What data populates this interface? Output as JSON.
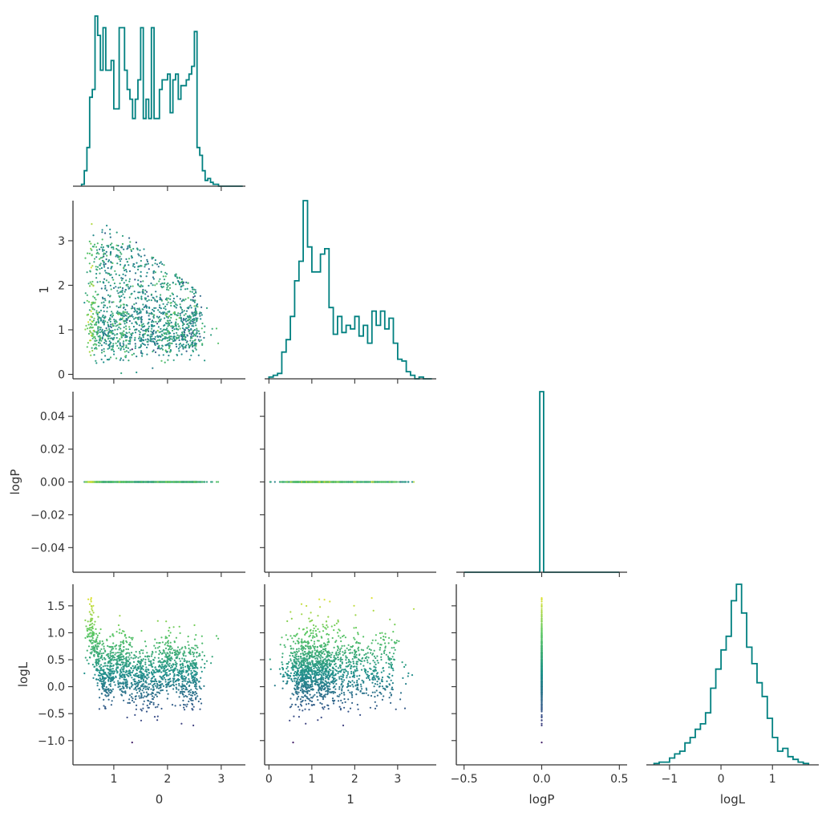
{
  "chart_data": {
    "type": "corner",
    "variables": [
      "0",
      "1",
      "logP",
      "logL"
    ],
    "axis_labels": {
      "x": [
        "0",
        "1",
        "logP",
        "logL"
      ],
      "y": [
        "",
        "1",
        "logP",
        "logL"
      ]
    },
    "ticks": {
      "0": {
        "values": [
          1,
          2,
          3
        ],
        "labels": [
          "1",
          "2",
          "3"
        ]
      },
      "1": {
        "values": [
          0,
          1,
          2,
          3
        ],
        "labels": [
          "0",
          "1",
          "2",
          "3"
        ]
      },
      "logP_x": {
        "values": [
          -0.5,
          0.0,
          0.5
        ],
        "labels": [
          "−0.5",
          "0.0",
          "0.5"
        ]
      },
      "logP_y": {
        "values": [
          -0.04,
          -0.02,
          0.0,
          0.02,
          0.04
        ],
        "labels": [
          "−0.04",
          "−0.02",
          "0.00",
          "0.02",
          "0.04"
        ]
      },
      "logL_x": {
        "values": [
          -1,
          0,
          1
        ],
        "labels": [
          "−1",
          "0",
          "1"
        ]
      },
      "logL_y": {
        "values": [
          -1.0,
          -0.5,
          0.0,
          0.5,
          1.0,
          1.5
        ],
        "labels": [
          "−1.0",
          "−0.5",
          "0.0",
          "0.5",
          "1.0",
          "1.5"
        ]
      }
    },
    "ranges": {
      "0": [
        0.24,
        3.45
      ],
      "1": [
        -0.1,
        3.9
      ],
      "logP_x": [
        -0.55,
        0.55
      ],
      "logP_y": [
        -0.055,
        0.055
      ],
      "logL": [
        -1.45,
        1.9
      ]
    },
    "hist_color": "#008080",
    "colormap": "viridis",
    "colormap_stops": [
      "#440154",
      "#3b528b",
      "#21918c",
      "#5ec962",
      "#fde725"
    ],
    "histograms": {
      "0": {
        "edges": [
          0.4,
          0.45,
          0.5,
          0.55,
          0.6,
          0.65,
          0.7,
          0.75,
          0.8,
          0.85,
          0.9,
          0.95,
          1.0,
          1.05,
          1.1,
          1.15,
          1.2,
          1.25,
          1.3,
          1.35,
          1.4,
          1.45,
          1.5,
          1.55,
          1.6,
          1.65,
          1.7,
          1.75,
          1.8,
          1.85,
          1.9,
          1.95,
          2.0,
          2.05,
          2.1,
          2.15,
          2.2,
          2.25,
          2.3,
          2.35,
          2.4,
          2.45,
          2.5,
          2.55,
          2.6,
          2.65,
          2.7,
          2.75,
          2.8,
          2.85,
          2.9,
          2.95,
          3.0,
          3.05,
          3.1,
          3.15,
          3.2,
          3.25,
          3.3,
          3.35,
          3.4
        ],
        "counts": [
          1,
          8,
          20,
          46,
          50,
          88,
          78,
          60,
          82,
          60,
          60,
          65,
          40,
          40,
          82,
          82,
          60,
          50,
          45,
          35,
          45,
          55,
          82,
          35,
          45,
          35,
          82,
          35,
          35,
          50,
          55,
          55,
          58,
          38,
          55,
          58,
          45,
          52,
          52,
          55,
          58,
          62,
          80,
          20,
          16,
          8,
          3,
          4,
          2,
          1,
          1,
          0,
          0,
          0,
          0,
          0,
          0,
          0,
          0,
          0
        ]
      },
      "1": {
        "edges": [
          0.0,
          0.1,
          0.2,
          0.3,
          0.4,
          0.5,
          0.6,
          0.7,
          0.8,
          0.9,
          1.0,
          1.1,
          1.2,
          1.3,
          1.4,
          1.5,
          1.6,
          1.7,
          1.8,
          1.9,
          2.0,
          2.1,
          2.2,
          2.3,
          2.4,
          2.5,
          2.6,
          2.7,
          2.8,
          2.9,
          3.0,
          3.1,
          3.2,
          3.3,
          3.4,
          3.5,
          3.6,
          3.7,
          3.8
        ],
        "counts": [
          1,
          2,
          3,
          15,
          22,
          35,
          55,
          66,
          100,
          74,
          60,
          60,
          70,
          73,
          40,
          25,
          35,
          26,
          30,
          28,
          35,
          24,
          30,
          20,
          38,
          30,
          38,
          28,
          34,
          20,
          11,
          10,
          4,
          2,
          0,
          1,
          0,
          0
        ]
      },
      "logP": {
        "edges": [
          -0.5,
          -0.0125,
          0.0125,
          0.5
        ],
        "counts": [
          0,
          1,
          0
        ]
      },
      "logL": {
        "edges": [
          -1.3,
          -1.2,
          -1.1,
          -1.0,
          -0.9,
          -0.8,
          -0.7,
          -0.6,
          -0.5,
          -0.4,
          -0.3,
          -0.2,
          -0.1,
          0.0,
          0.1,
          0.2,
          0.3,
          0.4,
          0.5,
          0.6,
          0.7,
          0.8,
          0.9,
          1.0,
          1.1,
          1.2,
          1.3,
          1.4,
          1.5,
          1.6,
          1.7
        ],
        "counts": [
          1,
          2,
          2,
          5,
          8,
          10,
          16,
          20,
          26,
          30,
          38,
          56,
          70,
          84,
          94,
          120,
          132,
          111,
          86,
          74,
          60,
          50,
          34,
          20,
          10,
          12,
          6,
          4,
          2,
          1
        ]
      }
    },
    "scatter": {
      "n_points": 1500,
      "x0_range": [
        0.4,
        3.4
      ],
      "x1_range": [
        0.05,
        3.8
      ],
      "logP_value": 0.0,
      "logL_range": [
        -1.3,
        1.8
      ],
      "color_by": "logL"
    }
  }
}
